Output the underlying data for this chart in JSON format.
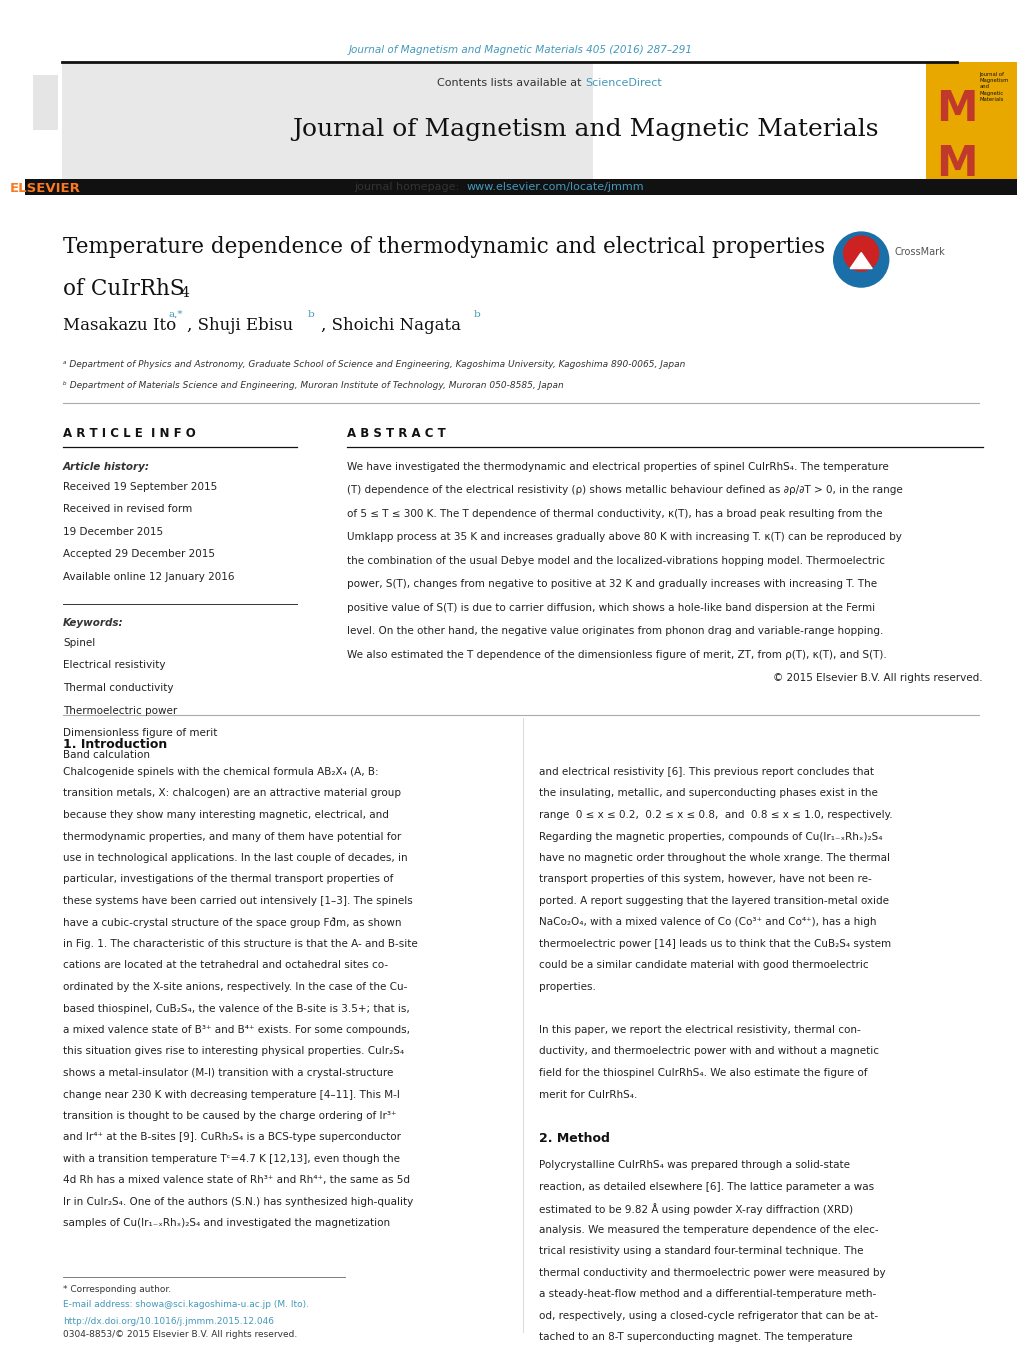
{
  "page_width": 9.92,
  "page_height": 13.23,
  "background_color": "#ffffff",
  "top_url_text": "Journal of Magnetism and Magnetic Materials 405 (2016) 287–291",
  "top_url_color": "#4499bb",
  "journal_title": "Journal of Magnetism and Magnetic Materials",
  "journal_homepage": "journal homepage:  www.elsevier.com/locate/jmmm",
  "homepage_color": "#4499bb",
  "header_bg_color": "#e8e8e8",
  "dark_bar_color": "#222222",
  "article_title_line1": "Temperature dependence of thermodynamic and electrical properties",
  "article_title_line2": "of CuIrRhS",
  "article_title_subscript": "4",
  "authors": "Masakazu Ito",
  "author_super1": "a,*",
  "author2": ", Shuji Ebisu",
  "author_super2": " b",
  "author3": ", Shoichi Nagata",
  "author_super3": " b",
  "affil1": "ᵃ Department of Physics and Astronomy, Graduate School of Science and Engineering, Kagoshima University, Kagoshima 890-0065, Japan",
  "affil2": "ᵇ Department of Materials Science and Engineering, Muroran Institute of Technology, Muroran 050-8585, Japan",
  "section_article_info": "A R T I C L E  I N F O",
  "section_abstract": "A B S T R A C T",
  "article_history_label": "Article history:",
  "received1": "Received 19 September 2015",
  "received2": "Received in revised form",
  "received2b": "19 December 2015",
  "accepted": "Accepted 29 December 2015",
  "available": "Available online 12 January 2016",
  "keywords_label": "Keywords:",
  "keywords": [
    "Spinel",
    "Electrical resistivity",
    "Thermal conductivity",
    "Thermoelectric power",
    "Dimensionless figure of merit",
    "Band calculation"
  ],
  "copyright_text": "© 2015 Elsevier B.V. All rights reserved.",
  "intro_heading": "1. Introduction",
  "method_heading": "2. Method",
  "footer_note1": "* Corresponding author.",
  "footer_email": "E-mail address: showa@sci.kagoshima-u.ac.jp (M. Ito).",
  "footer_doi": "http://dx.doi.org/10.1016/j.jmmm.2015.12.046",
  "footer_issn": "0304-8853/© 2015 Elsevier B.V. All rights reserved.",
  "elsevier_color": "#f97a1f",
  "top_url_color_link": "#4499bb",
  "crossmark_blue": "#1a6fa8",
  "crossmark_red": "#c0392b",
  "mm_logo_bg": "#e8a800",
  "mm_logo_red": "#c0392b"
}
